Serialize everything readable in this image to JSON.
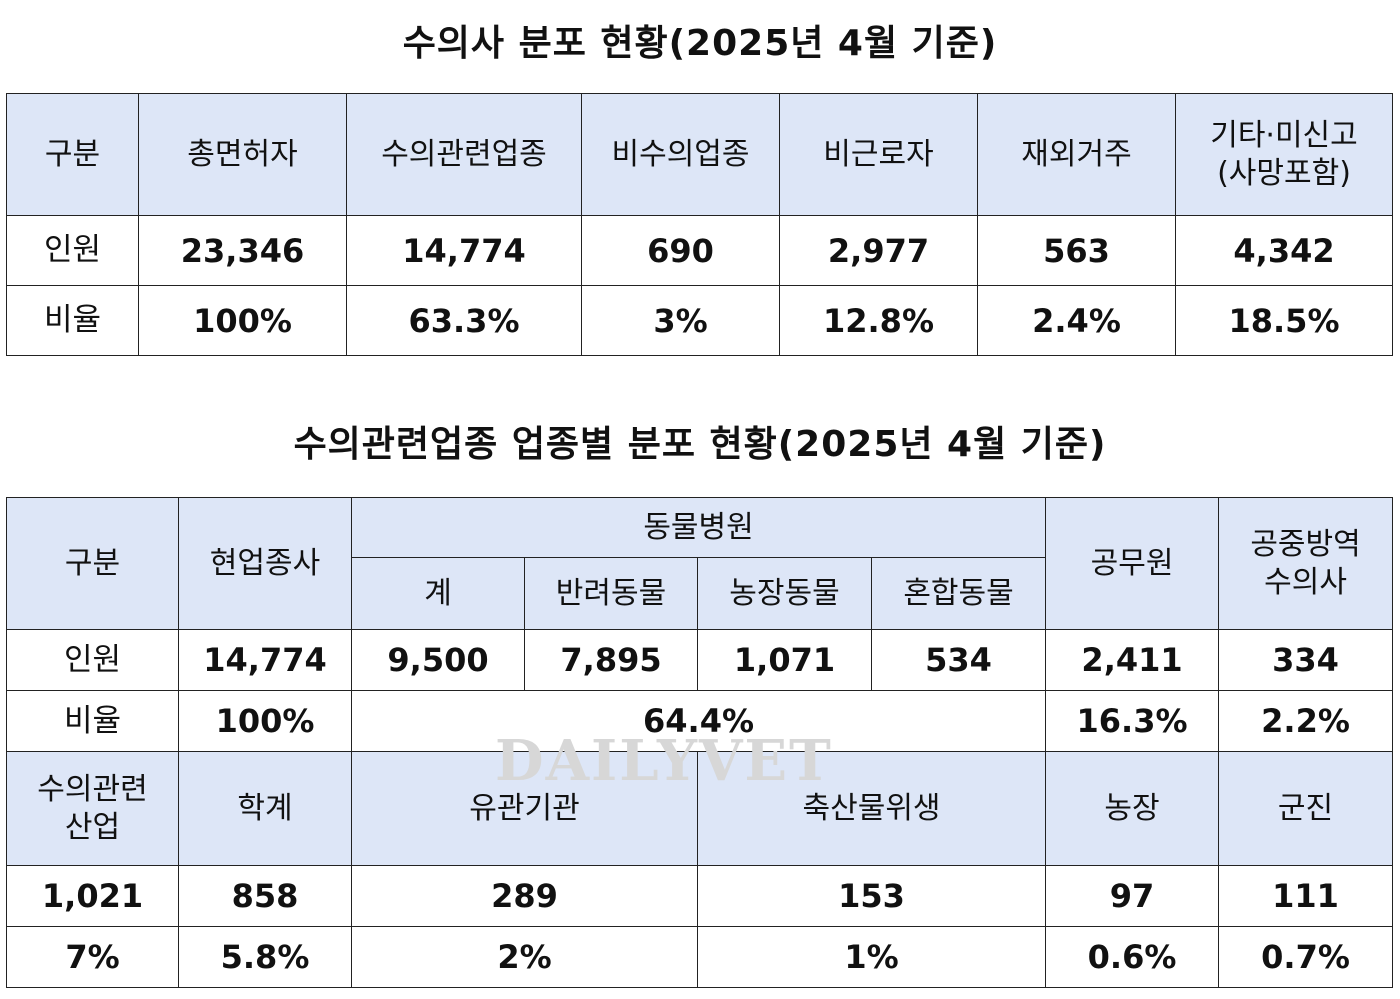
{
  "table1": {
    "title": "수의사 분포 현황(2025년 4월 기준)",
    "headers": [
      "구분",
      "총면허자",
      "수의관련업종",
      "비수의업종",
      "비근로자",
      "재외거주",
      "기타·미신고",
      "(사망포함)"
    ],
    "rows": [
      [
        "인원",
        "23,346",
        "14,774",
        "690",
        "2,977",
        "563",
        "4,342"
      ],
      [
        "비율",
        "100%",
        "63.3%",
        "3%",
        "12.8%",
        "2.4%",
        "18.5%"
      ]
    ]
  },
  "table2": {
    "title": "수의관련업종 업종별 분포 현황(2025년 4월 기준)",
    "header": {
      "gubun": "구분",
      "active": "현업종사",
      "hospital": "동물병원",
      "sub": [
        "계",
        "반려동물",
        "농장동물",
        "혼합동물"
      ],
      "public": "공무원",
      "quarantine_1": "공중방역",
      "quarantine_2": "수의사"
    },
    "count_row": [
      "인원",
      "14,774",
      "9,500",
      "7,895",
      "1,071",
      "534",
      "2,411",
      "334"
    ],
    "ratio_row": [
      "비율",
      "100%",
      "64.4%",
      "16.3%",
      "2.2%"
    ],
    "industry_header": {
      "label_1": "수의관련",
      "label_2": "산업",
      "academia": "학계",
      "related_org": "유관기관",
      "livestock": "축산물위생",
      "farm": "농장",
      "military": "군진"
    },
    "industry_counts": [
      "1,021",
      "858",
      "289",
      "153",
      "97",
      "111"
    ],
    "industry_ratios": [
      "7%",
      "5.8%",
      "2%",
      "1%",
      "0.6%",
      "0.7%"
    ]
  },
  "watermark": "DAILYVET"
}
